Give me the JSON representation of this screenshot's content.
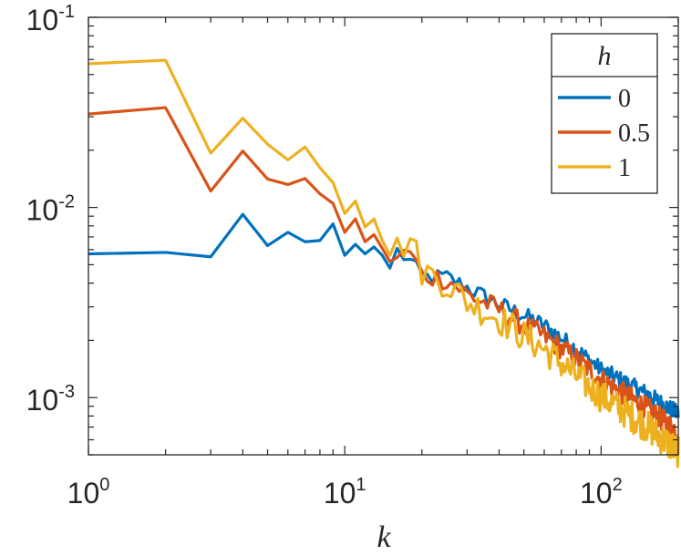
{
  "chart_data": {
    "type": "line",
    "title": "",
    "xlabel": "k",
    "ylabel": "",
    "xscale": "log",
    "yscale": "log",
    "xlim": [
      1,
      200
    ],
    "ylim": [
      0.0005,
      0.1
    ],
    "grid": false,
    "legend_position": "top-right",
    "legend_title": "h",
    "x_ticks": [
      {
        "value": 1,
        "base": "10",
        "exp": "0"
      },
      {
        "value": 10,
        "base": "10",
        "exp": "1"
      },
      {
        "value": 100,
        "base": "10",
        "exp": "2"
      }
    ],
    "y_ticks": [
      {
        "value": 0.001,
        "base": "10",
        "exp": "-3"
      },
      {
        "value": 0.01,
        "base": "10",
        "exp": "-2"
      },
      {
        "value": 0.1,
        "base": "10",
        "exp": "-1"
      }
    ],
    "series": [
      {
        "name": "0",
        "color": "#0072BD",
        "anchors": [
          [
            1,
            0.0057
          ],
          [
            2,
            0.0058
          ],
          [
            3,
            0.0055
          ],
          [
            4,
            0.0092
          ],
          [
            5,
            0.0063
          ],
          [
            6,
            0.0074
          ],
          [
            7,
            0.0066
          ],
          [
            8,
            0.0067
          ],
          [
            9,
            0.0082
          ],
          [
            10,
            0.0056
          ],
          [
            11,
            0.0064
          ],
          [
            12,
            0.0057
          ],
          [
            13,
            0.0062
          ],
          [
            14,
            0.0056
          ],
          [
            15,
            0.0048
          ],
          [
            16,
            0.0059
          ],
          [
            18,
            0.0052
          ],
          [
            20,
            0.0043
          ],
          [
            25,
            0.0043
          ],
          [
            30,
            0.0038
          ],
          [
            40,
            0.0031
          ],
          [
            50,
            0.0027
          ],
          [
            60,
            0.0024
          ],
          [
            80,
            0.0018
          ],
          [
            100,
            0.0014
          ],
          [
            150,
            0.00105
          ],
          [
            200,
            0.00082
          ]
        ]
      },
      {
        "name": "0.5",
        "color": "#D95319",
        "anchors": [
          [
            1,
            0.031
          ],
          [
            2,
            0.0335
          ],
          [
            3,
            0.0122
          ],
          [
            4,
            0.0198
          ],
          [
            5,
            0.0141
          ],
          [
            6,
            0.0132
          ],
          [
            7,
            0.0142
          ],
          [
            8,
            0.0118
          ],
          [
            9,
            0.0105
          ],
          [
            10,
            0.0074
          ],
          [
            11,
            0.0087
          ],
          [
            12,
            0.0066
          ],
          [
            13,
            0.0072
          ],
          [
            14,
            0.0061
          ],
          [
            15,
            0.0052
          ],
          [
            18,
            0.0058
          ],
          [
            20,
            0.0044
          ],
          [
            25,
            0.0042
          ],
          [
            30,
            0.0035
          ],
          [
            40,
            0.0029
          ],
          [
            50,
            0.0024
          ],
          [
            60,
            0.0021
          ],
          [
            80,
            0.0016
          ],
          [
            100,
            0.00125
          ],
          [
            150,
            0.00088
          ],
          [
            200,
            0.00066
          ]
        ]
      },
      {
        "name": "1",
        "color": "#EDB120",
        "anchors": [
          [
            1,
            0.057
          ],
          [
            2,
            0.0595
          ],
          [
            3,
            0.0193
          ],
          [
            4,
            0.0295
          ],
          [
            5,
            0.0215
          ],
          [
            6,
            0.0178
          ],
          [
            7,
            0.0208
          ],
          [
            8,
            0.0162
          ],
          [
            9,
            0.0135
          ],
          [
            10,
            0.0093
          ],
          [
            11,
            0.0108
          ],
          [
            12,
            0.0079
          ],
          [
            13,
            0.0087
          ],
          [
            14,
            0.0067
          ],
          [
            15,
            0.0056
          ],
          [
            18,
            0.0069
          ],
          [
            20,
            0.0047
          ],
          [
            25,
            0.004
          ],
          [
            30,
            0.0032
          ],
          [
            40,
            0.0026
          ],
          [
            50,
            0.0021
          ],
          [
            60,
            0.0018
          ],
          [
            80,
            0.0013
          ],
          [
            100,
            0.00102
          ],
          [
            150,
            0.00071
          ],
          [
            200,
            0.00052
          ]
        ]
      }
    ]
  }
}
